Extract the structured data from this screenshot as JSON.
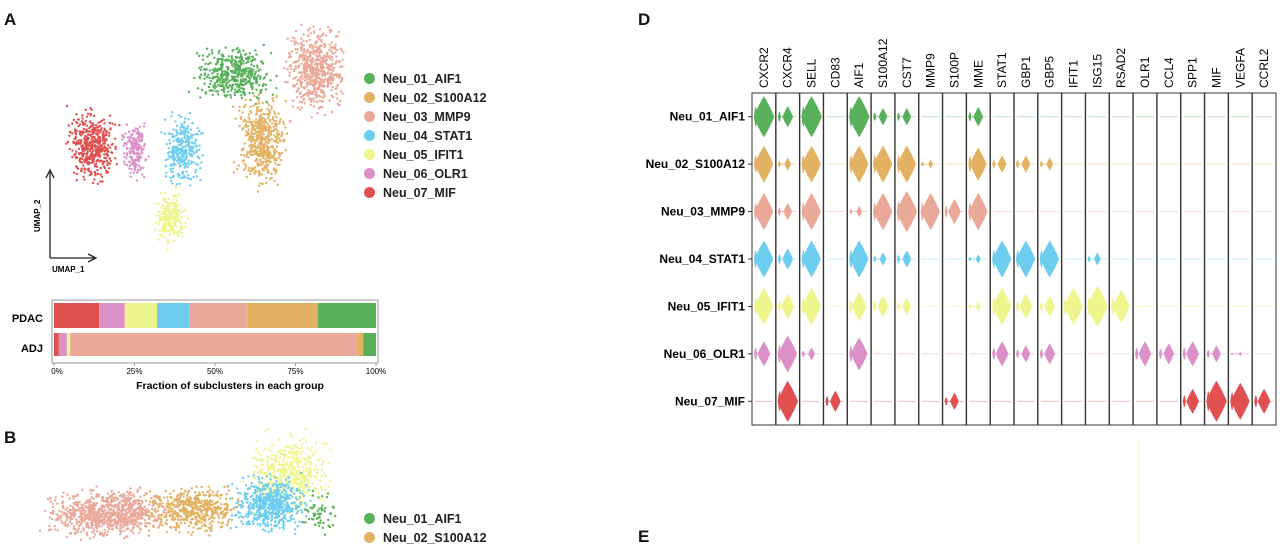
{
  "panels": {
    "a": "A",
    "b": "B",
    "d": "D",
    "e": "E"
  },
  "clusters": [
    {
      "name": "Neu_01_AIF1",
      "color": "#58b05a"
    },
    {
      "name": "Neu_02_S100A12",
      "color": "#e2b262"
    },
    {
      "name": "Neu_03_MMP9",
      "color": "#e9a898"
    },
    {
      "name": "Neu_04_STAT1",
      "color": "#6ccdef"
    },
    {
      "name": "Neu_05_IFIT1",
      "color": "#ecf68c"
    },
    {
      "name": "Neu_06_OLR1",
      "color": "#dc90c8"
    },
    {
      "name": "Neu_07_MIF",
      "color": "#e05050"
    }
  ],
  "umap": {
    "xlabel": "UMAP_1",
    "ylabel": "UMAP_2"
  },
  "panel_b_legend": [
    "Neu_01_AIF1",
    "Neu_02_S100A12"
  ],
  "chart_data": [
    {
      "type": "bar",
      "orientation": "horizontal-stacked",
      "categories": [
        "PDAC",
        "ADJ"
      ],
      "series": [
        {
          "name": "Neu_07_MIF",
          "values": [
            14,
            1.5
          ]
        },
        {
          "name": "Neu_06_OLR1",
          "values": [
            8,
            2.5
          ]
        },
        {
          "name": "Neu_05_IFIT1",
          "values": [
            10,
            1
          ]
        },
        {
          "name": "Neu_04_STAT1",
          "values": [
            10,
            0
          ]
        },
        {
          "name": "Neu_03_MMP9",
          "values": [
            18,
            89
          ]
        },
        {
          "name": "Neu_02_S100A12",
          "values": [
            22,
            2
          ]
        },
        {
          "name": "Neu_01_AIF1",
          "values": [
            18,
            4
          ]
        }
      ],
      "xlabel": "Fraction of subclusters in each group",
      "xticks": [
        "0%",
        "25%",
        "50%",
        "75%",
        "100%"
      ],
      "xlim": [
        0,
        100
      ]
    },
    {
      "type": "violin",
      "genes": [
        "CXCR2",
        "CXCR4",
        "SELL",
        "CD83",
        "AIF1",
        "S100A12",
        "CST7",
        "MMP9",
        "S100P",
        "MME",
        "STAT1",
        "GBP1",
        "GBP5",
        "IFIT1",
        "ISG15",
        "RSAD2",
        "OLR1",
        "CCL4",
        "SPP1",
        "MIF",
        "VEGFA",
        "CCRL2"
      ],
      "rows": [
        "Neu_01_AIF1",
        "Neu_02_S100A12",
        "Neu_03_MMP9",
        "Neu_04_STAT1",
        "Neu_05_IFIT1",
        "Neu_06_OLR1",
        "Neu_07_MIF"
      ],
      "expression": [
        [
          1,
          0.5,
          1,
          0,
          1,
          0.4,
          0.4,
          0,
          0,
          0.45,
          0,
          0,
          0,
          0,
          0,
          0,
          0,
          0,
          0,
          0,
          0,
          0
        ],
        [
          0.9,
          0.3,
          0.9,
          0,
          0.9,
          0.9,
          0.9,
          0.2,
          0,
          0.8,
          0.4,
          0.4,
          0.3,
          0,
          0,
          0,
          0,
          0,
          0,
          0,
          0,
          0
        ],
        [
          0.9,
          0.4,
          0.9,
          0,
          0.25,
          0.9,
          1,
          0.9,
          0.6,
          0.9,
          0,
          0,
          0,
          0,
          0,
          0,
          0,
          0,
          0,
          0,
          0,
          0
        ],
        [
          0.9,
          0.5,
          0.9,
          0,
          0.9,
          0.3,
          0.4,
          0,
          0,
          0.2,
          0.9,
          0.9,
          0.9,
          0,
          0.3,
          0,
          0,
          0,
          0,
          0,
          0,
          0
        ],
        [
          0.9,
          0.6,
          0.9,
          0,
          0.7,
          0.5,
          0.4,
          0,
          0,
          0.2,
          0.9,
          0.6,
          0.5,
          0.9,
          1,
          0.8,
          0,
          0,
          0,
          0,
          0,
          0
        ],
        [
          0.6,
          0.9,
          0.3,
          0,
          0.8,
          0,
          0,
          0,
          0,
          0,
          0.6,
          0.4,
          0.5,
          0,
          0,
          0,
          0.6,
          0.5,
          0.6,
          0.4,
          0.1,
          0
        ],
        [
          0,
          1,
          0,
          0.5,
          0,
          0,
          0,
          0,
          0.4,
          0,
          0,
          0,
          0,
          0,
          0,
          0,
          0,
          0,
          0.6,
          1,
          0.9,
          0.6
        ]
      ]
    }
  ]
}
